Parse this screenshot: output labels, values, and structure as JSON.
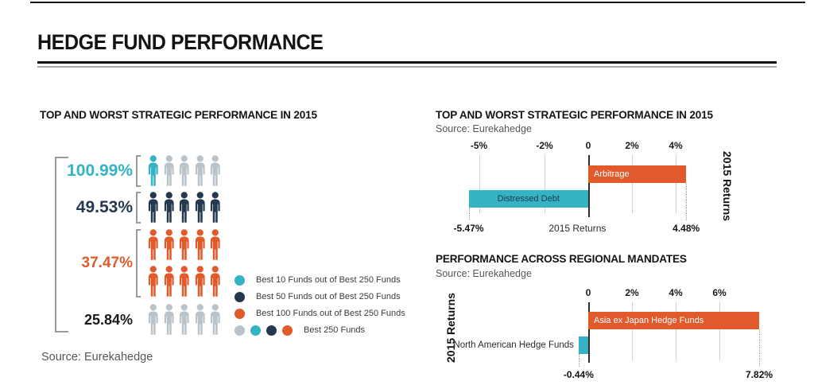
{
  "header": {
    "title": "HEDGE FUND PERFORMANCE"
  },
  "palette": {
    "teal": "#33B3C4",
    "navy": "#24394F",
    "orange": "#E05A2B",
    "gray": "#B9C3C9",
    "black": "#1A1A1A"
  },
  "chart_data": [
    {
      "type": "pictograph",
      "title": "TOP AND WORST STRATEGIC PERFORMANCE IN 2015",
      "source": "Source: Eurekahedge",
      "rows": [
        {
          "value_label": "100.99%",
          "value": 100.99,
          "color": "teal",
          "icons": [
            "teal",
            "gray",
            "gray",
            "gray",
            "gray"
          ],
          "bracket": true
        },
        {
          "value_label": "49.53%",
          "value": 49.53,
          "color": "navy",
          "icons": [
            "navy",
            "navy",
            "navy",
            "navy",
            "navy"
          ],
          "bracket": true
        },
        {
          "value_label": "37.47%",
          "value": 37.47,
          "color": "orange",
          "icons": [
            "orange",
            "orange",
            "orange",
            "orange",
            "orange",
            "orange",
            "orange",
            "orange",
            "orange",
            "orange"
          ],
          "bracket": true
        },
        {
          "value_label": "25.84%",
          "value": 25.84,
          "color": "black",
          "icons": [
            "gray",
            "gray",
            "gray",
            "gray",
            "gray"
          ],
          "bracket": false
        }
      ],
      "legend": [
        {
          "dots": [
            "teal"
          ],
          "label": "Best 10 Funds out of Best 250 Funds"
        },
        {
          "dots": [
            "navy"
          ],
          "label": "Best 50 Funds out of Best 250 Funds"
        },
        {
          "dots": [
            "orange"
          ],
          "label": "Best 100 Funds out of Best 250 Funds"
        },
        {
          "dots": [
            "gray",
            "teal",
            "navy",
            "orange"
          ],
          "label": "Best 250 Funds"
        }
      ]
    },
    {
      "type": "bar",
      "orientation": "horizontal",
      "title": "TOP AND WORST STRATEGIC PERFORMANCE IN 2015",
      "source": "Source: Eurekahedge",
      "axis": {
        "ticks": [
          {
            "label": "-5%",
            "value": -5
          },
          {
            "label": "-2%",
            "value": -2
          },
          {
            "label": "0",
            "value": 0
          },
          {
            "label": "2%",
            "value": 2
          },
          {
            "label": "4%",
            "value": 4
          }
        ],
        "range": [
          -5.47,
          4.48
        ]
      },
      "bars": [
        {
          "label": "Arbitrage",
          "value": 4.48,
          "value_label": "4.48%",
          "color": "orange",
          "label_placement": "inside-left",
          "label_color": "#FFFFFF"
        },
        {
          "label": "Distressed Debt",
          "value": -5.47,
          "value_label": "-5.47%",
          "color": "teal",
          "label_placement": "inside-center",
          "label_color": "#24394F"
        }
      ],
      "xlabel": "2015 Returns",
      "axis_label": "2015 Returns",
      "axis_label_side": "right"
    },
    {
      "type": "bar",
      "orientation": "horizontal",
      "title": "PERFORMANCE ACROSS REGIONAL MANDATES",
      "source": "Source: Eurekahedge",
      "axis": {
        "ticks": [
          {
            "label": "0",
            "value": 0
          },
          {
            "label": "2%",
            "value": 2
          },
          {
            "label": "4%",
            "value": 4
          },
          {
            "label": "6%",
            "value": 6
          }
        ],
        "range": [
          -0.44,
          7.82
        ]
      },
      "bars": [
        {
          "label": "Asia ex Japan Hedge Funds",
          "value": 7.82,
          "value_label": "7.82%",
          "color": "orange",
          "label_placement": "inside-left",
          "label_color": "#FFFFFF"
        },
        {
          "label": "North American Hedge Funds",
          "value": -0.44,
          "value_label": "-0.44%",
          "color": "teal",
          "label_placement": "outside-left",
          "label_color": "#2B2B2B"
        }
      ],
      "xlabel": "",
      "axis_label": "2015 Returns",
      "axis_label_side": "left"
    }
  ]
}
